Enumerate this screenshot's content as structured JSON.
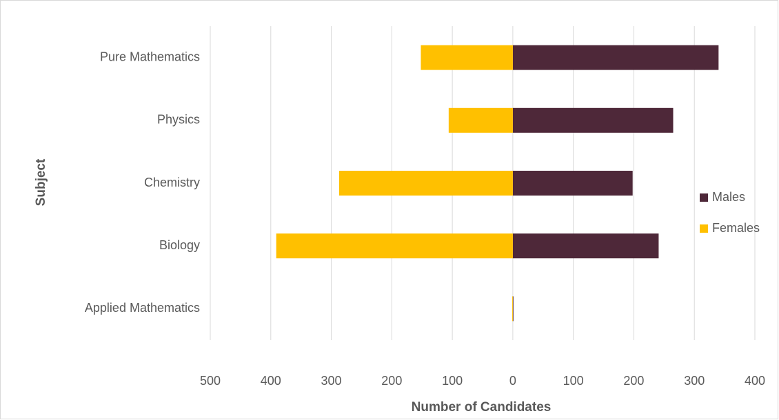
{
  "chart_data": {
    "type": "bar",
    "orientation": "horizontal",
    "diverging": true,
    "categories": [
      "Pure Mathematics",
      "Physics",
      "Chemistry",
      "Biology",
      "Applied Mathematics"
    ],
    "series": [
      {
        "name": "Males",
        "color": "#4e2839",
        "values": [
          340,
          265,
          198,
          241,
          1
        ]
      },
      {
        "name": "Females",
        "color": "#ffc000",
        "values": [
          -152,
          -106,
          -287,
          -391,
          -1
        ]
      }
    ],
    "xlabel": "Number of Candidates",
    "ylabel": "Subject",
    "xlim": [
      -500,
      400
    ],
    "xticks": [
      {
        "value": -500,
        "label": "500"
      },
      {
        "value": -400,
        "label": "400"
      },
      {
        "value": -300,
        "label": "300"
      },
      {
        "value": -200,
        "label": "200"
      },
      {
        "value": -100,
        "label": "100"
      },
      0,
      100,
      200,
      300,
      400
    ],
    "grid": true,
    "legend": "right"
  }
}
